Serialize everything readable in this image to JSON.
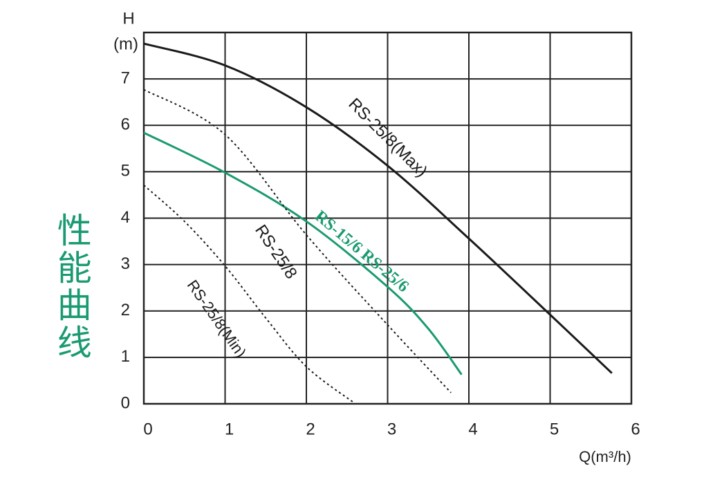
{
  "chart_data": {
    "type": "line",
    "side_title": "性能曲线",
    "side_title_color": "#1a9a72",
    "y_label": "H",
    "y_unit": "(m)",
    "x_label": "Q(m³/h)",
    "xlim": [
      0,
      6
    ],
    "xticks": [
      0,
      1,
      2,
      3,
      4,
      5,
      6
    ],
    "ylim": [
      0,
      8
    ],
    "yticks": [
      0,
      1,
      2,
      3,
      4,
      5,
      6,
      7
    ],
    "grid": true,
    "series": [
      {
        "name": "RS-25/8(Max)",
        "color": "#1a1a1a",
        "style": "solid",
        "x": [
          0,
          1,
          2,
          3,
          4,
          5,
          5.76
        ],
        "values": [
          7.76,
          7.29,
          6.39,
          5.13,
          3.56,
          1.92,
          0.66
        ]
      },
      {
        "name": "RS-15/6 RS-25/6",
        "color": "#1a9a72",
        "style": "solid",
        "x": [
          0,
          1,
          2,
          3,
          3.5,
          3.91
        ],
        "values": [
          5.84,
          4.98,
          3.93,
          2.52,
          1.62,
          0.63
        ]
      },
      {
        "name": "RS-25/8",
        "color": "#1a1a1a",
        "style": "dotted",
        "x": [
          0,
          1,
          2,
          3,
          3.78
        ],
        "values": [
          6.77,
          5.8,
          3.64,
          1.7,
          0.24
        ]
      },
      {
        "name": "RS-25/8(Min)",
        "color": "#1a1a1a",
        "style": "dotted",
        "x": [
          0,
          0.5,
          1,
          1.5,
          2,
          2.58
        ],
        "values": [
          4.71,
          3.93,
          2.97,
          1.85,
          0.8,
          0.03
        ]
      }
    ]
  }
}
